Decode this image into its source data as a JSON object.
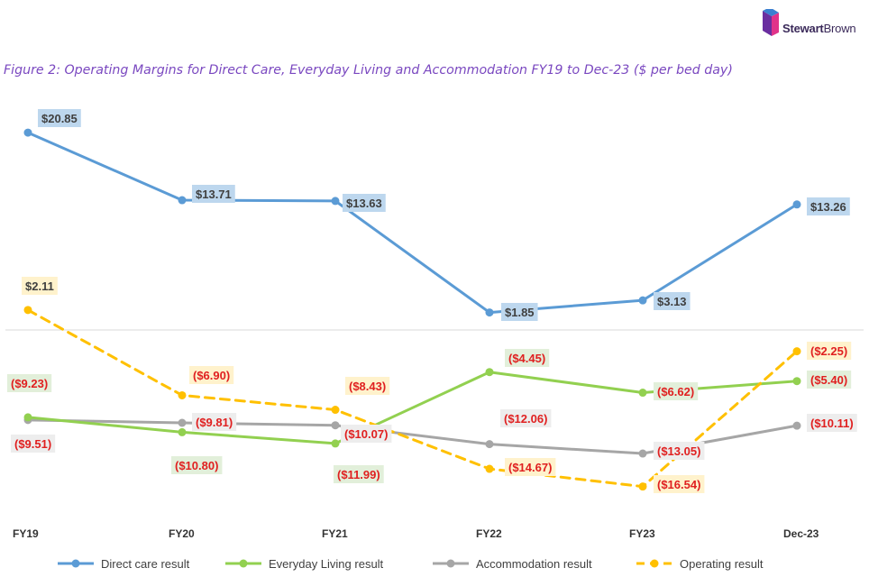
{
  "header": {
    "logo_text_bold": "Stewart",
    "logo_text_regular": "Brown",
    "figure_title": "Figure 2: Operating Margins for Direct Care, Everyday Living and Accommodation FY19 to Dec-23 ($ per bed day)"
  },
  "colors": {
    "direct_care": "#5b9bd5",
    "everyday_living": "#92d050",
    "accommodation": "#a6a6a6",
    "operating": "#ffc000",
    "negative_text": "#e02020",
    "positive_text": "#404040",
    "label_bg_blue": "#bdd7ee",
    "label_bg_green": "#e2efda",
    "label_bg_grey": "#ededed",
    "label_bg_yellow": "#fff2cc"
  },
  "chart_data": {
    "type": "line",
    "title": "Operating Margins for Direct Care, Everyday Living and Accommodation FY19 to Dec-23 ($ per bed day)",
    "xlabel": "",
    "ylabel": "$ per bed day",
    "grid": false,
    "ylim": [
      -18,
      22
    ],
    "legend_position": "bottom",
    "categories": [
      "FY19",
      "FY20",
      "FY21",
      "FY22",
      "FY23",
      "Dec-23"
    ],
    "series": [
      {
        "key": "direct_care",
        "name": "Direct care result",
        "dashed": false,
        "values": [
          20.85,
          13.71,
          13.63,
          1.85,
          3.13,
          13.26
        ],
        "labels": [
          "$20.85",
          "$13.71",
          "$13.63",
          "$1.85",
          "$3.13",
          "$13.26"
        ]
      },
      {
        "key": "everyday_living",
        "name": "Everyday Living result",
        "dashed": false,
        "values": [
          -9.23,
          -10.8,
          -11.99,
          -4.45,
          -6.62,
          -5.4
        ],
        "labels": [
          "($9.23)",
          "($10.80)",
          "($11.99)",
          "($4.45)",
          "($6.62)",
          "($5.40)"
        ]
      },
      {
        "key": "accommodation",
        "name": "Accommodation result",
        "dashed": false,
        "values": [
          -9.51,
          -9.81,
          -10.07,
          -12.06,
          -13.05,
          -10.11
        ],
        "labels": [
          "($9.51)",
          "($9.81)",
          "($10.07)",
          "($12.06)",
          "($13.05)",
          "($10.11)"
        ]
      },
      {
        "key": "operating",
        "name": "Operating result",
        "dashed": true,
        "values": [
          2.11,
          -6.9,
          -8.43,
          -14.67,
          -16.54,
          -2.25
        ],
        "labels": [
          "$2.11",
          "($6.90)",
          "($8.43)",
          "($14.67)",
          "($16.54)",
          "($2.25)"
        ]
      }
    ]
  }
}
